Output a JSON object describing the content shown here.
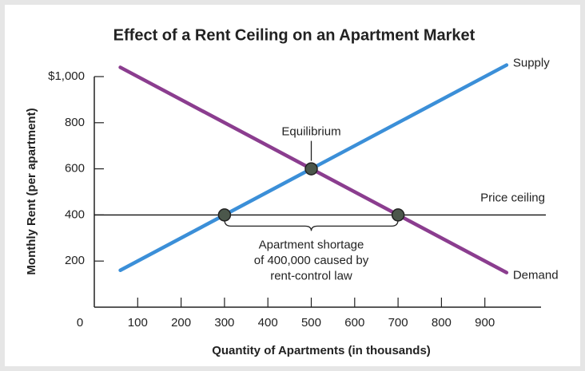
{
  "chart_data": {
    "type": "line",
    "title": "Effect of a Rent Ceiling on an Apartment Market",
    "xlabel": "Quantity of Apartments (in thousands)",
    "ylabel": "Monthly Rent (per apartment)",
    "xlim": [
      0,
      1035
    ],
    "ylim": [
      0,
      1000
    ],
    "xticks": [
      100,
      200,
      300,
      400,
      500,
      600,
      700,
      800,
      900
    ],
    "yticks": [
      0,
      200,
      400,
      600,
      800,
      {
        "value": 1000,
        "label": "$1,000"
      }
    ],
    "series": [
      {
        "name": "Supply",
        "color": "#3b8fd8",
        "x": [
          60,
          950
        ],
        "values": [
          160,
          1050
        ]
      },
      {
        "name": "Demand",
        "color": "#8b3d8f",
        "x": [
          60,
          950
        ],
        "values": [
          1040,
          150
        ]
      }
    ],
    "price_ceiling": {
      "label": "Price ceiling",
      "value": 400
    },
    "points": {
      "x": [
        300,
        500,
        700
      ],
      "values": [
        400,
        600,
        400
      ],
      "color": "#4b574b"
    },
    "equilibrium_label": "Equilibrium",
    "shortage_label": [
      "Apartment shortage",
      "of 400,000 caused by",
      "rent-control law"
    ]
  }
}
